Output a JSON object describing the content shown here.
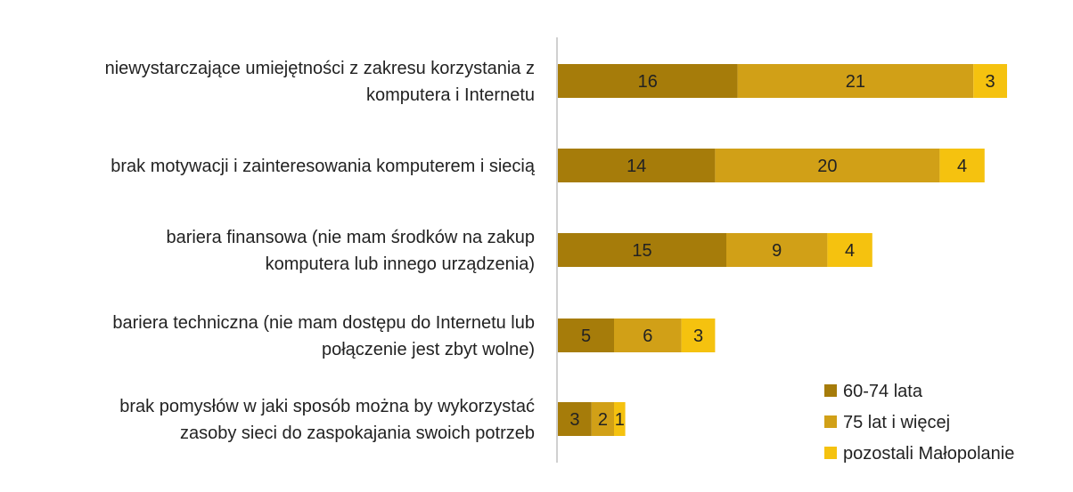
{
  "chart_data": {
    "type": "bar",
    "orientation": "horizontal",
    "stacked": true,
    "title": "",
    "xlabel": "",
    "ylabel": "",
    "grid": false,
    "legend_position": "bottom-right",
    "categories": [
      [
        "niewystarczające umiejętności z zakresu korzystania z",
        "komputera i Internetu"
      ],
      [
        "brak motywacji i zainteresowania komputerem i siecią"
      ],
      [
        "bariera finansowa (nie mam środków na zakup",
        "komputera lub innego urządzenia)"
      ],
      [
        "bariera techniczna (nie mam dostępu do Internetu lub",
        "połączenie jest zbyt wolne)"
      ],
      [
        "brak pomysłów w jaki sposób można by wykorzystać",
        "zasoby sieci do zaspokajania swoich potrzeb"
      ]
    ],
    "series": [
      {
        "name": "60-74 lata",
        "color": "#A67C0A",
        "values": [
          16,
          14,
          15,
          5,
          3
        ]
      },
      {
        "name": "75 lat i więcej",
        "color": "#D1A017",
        "values": [
          21,
          20,
          9,
          6,
          2
        ]
      },
      {
        "name": "pozostali Małopolanie",
        "color": "#F5C20F",
        "values": [
          3,
          4,
          4,
          3,
          1
        ]
      }
    ]
  }
}
